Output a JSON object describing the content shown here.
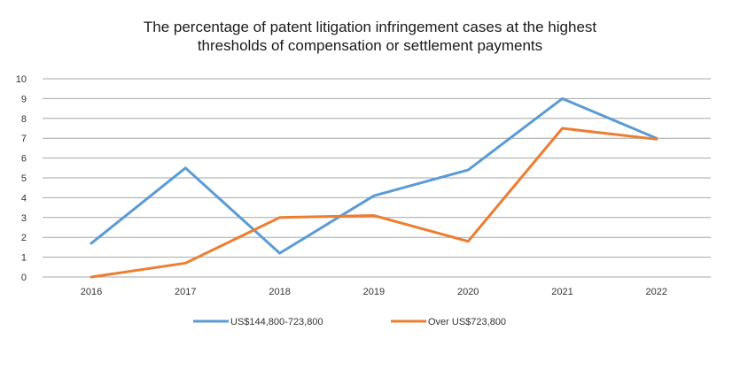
{
  "chart_data": {
    "type": "line",
    "title_lines": [
      "The percentage of patent litigation infringement cases at the highest",
      "thresholds of compensation or settlement payments"
    ],
    "categories": [
      "2016",
      "2017",
      "2018",
      "2019",
      "2020",
      "2021",
      "2022"
    ],
    "series": [
      {
        "name": "US$144,800-723,800",
        "values": [
          1.7,
          5.5,
          1.2,
          4.1,
          5.4,
          9.0,
          7.0
        ],
        "color": "#5b9bd5"
      },
      {
        "name": "Over US$723,800",
        "values": [
          0.0,
          0.7,
          3.0,
          3.1,
          1.8,
          7.5,
          6.95
        ],
        "color": "#ed7d31"
      }
    ],
    "ylim": [
      0,
      10
    ],
    "yticks": [
      "0",
      "1",
      "2",
      "3",
      "4",
      "5",
      "6",
      "7",
      "8",
      "9",
      "10"
    ],
    "grid": true,
    "legend_position": "bottom"
  }
}
